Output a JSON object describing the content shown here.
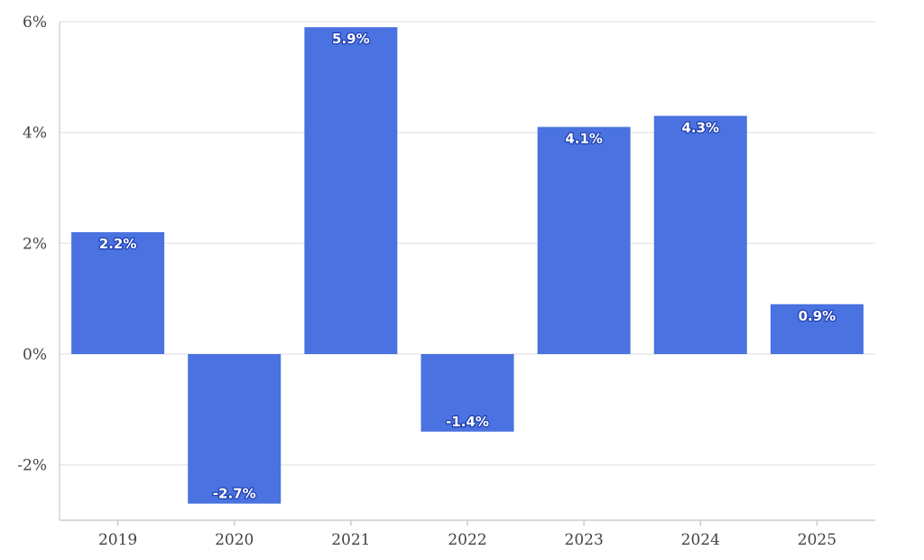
{
  "chart_data": {
    "type": "bar",
    "categories": [
      "2019",
      "2020",
      "2021",
      "2022",
      "2023",
      "2024",
      "2025"
    ],
    "values": [
      2.2,
      -2.7,
      5.9,
      -1.4,
      4.1,
      4.3,
      0.9
    ],
    "data_labels": [
      "2.2%",
      "-2.7%",
      "5.9%",
      "-1.4%",
      "4.1%",
      "4.3%",
      "0.9%"
    ],
    "yticks": [
      -2,
      0,
      2,
      4,
      6
    ],
    "ytick_labels": [
      "-2%",
      "0%",
      "2%",
      "4%",
      "6%"
    ],
    "ylim": [
      -3,
      6
    ],
    "title": "",
    "xlabel": "",
    "ylabel": "",
    "grid": true,
    "bar_color": "#4a72e0",
    "grid_color": "#e8e8ee"
  }
}
